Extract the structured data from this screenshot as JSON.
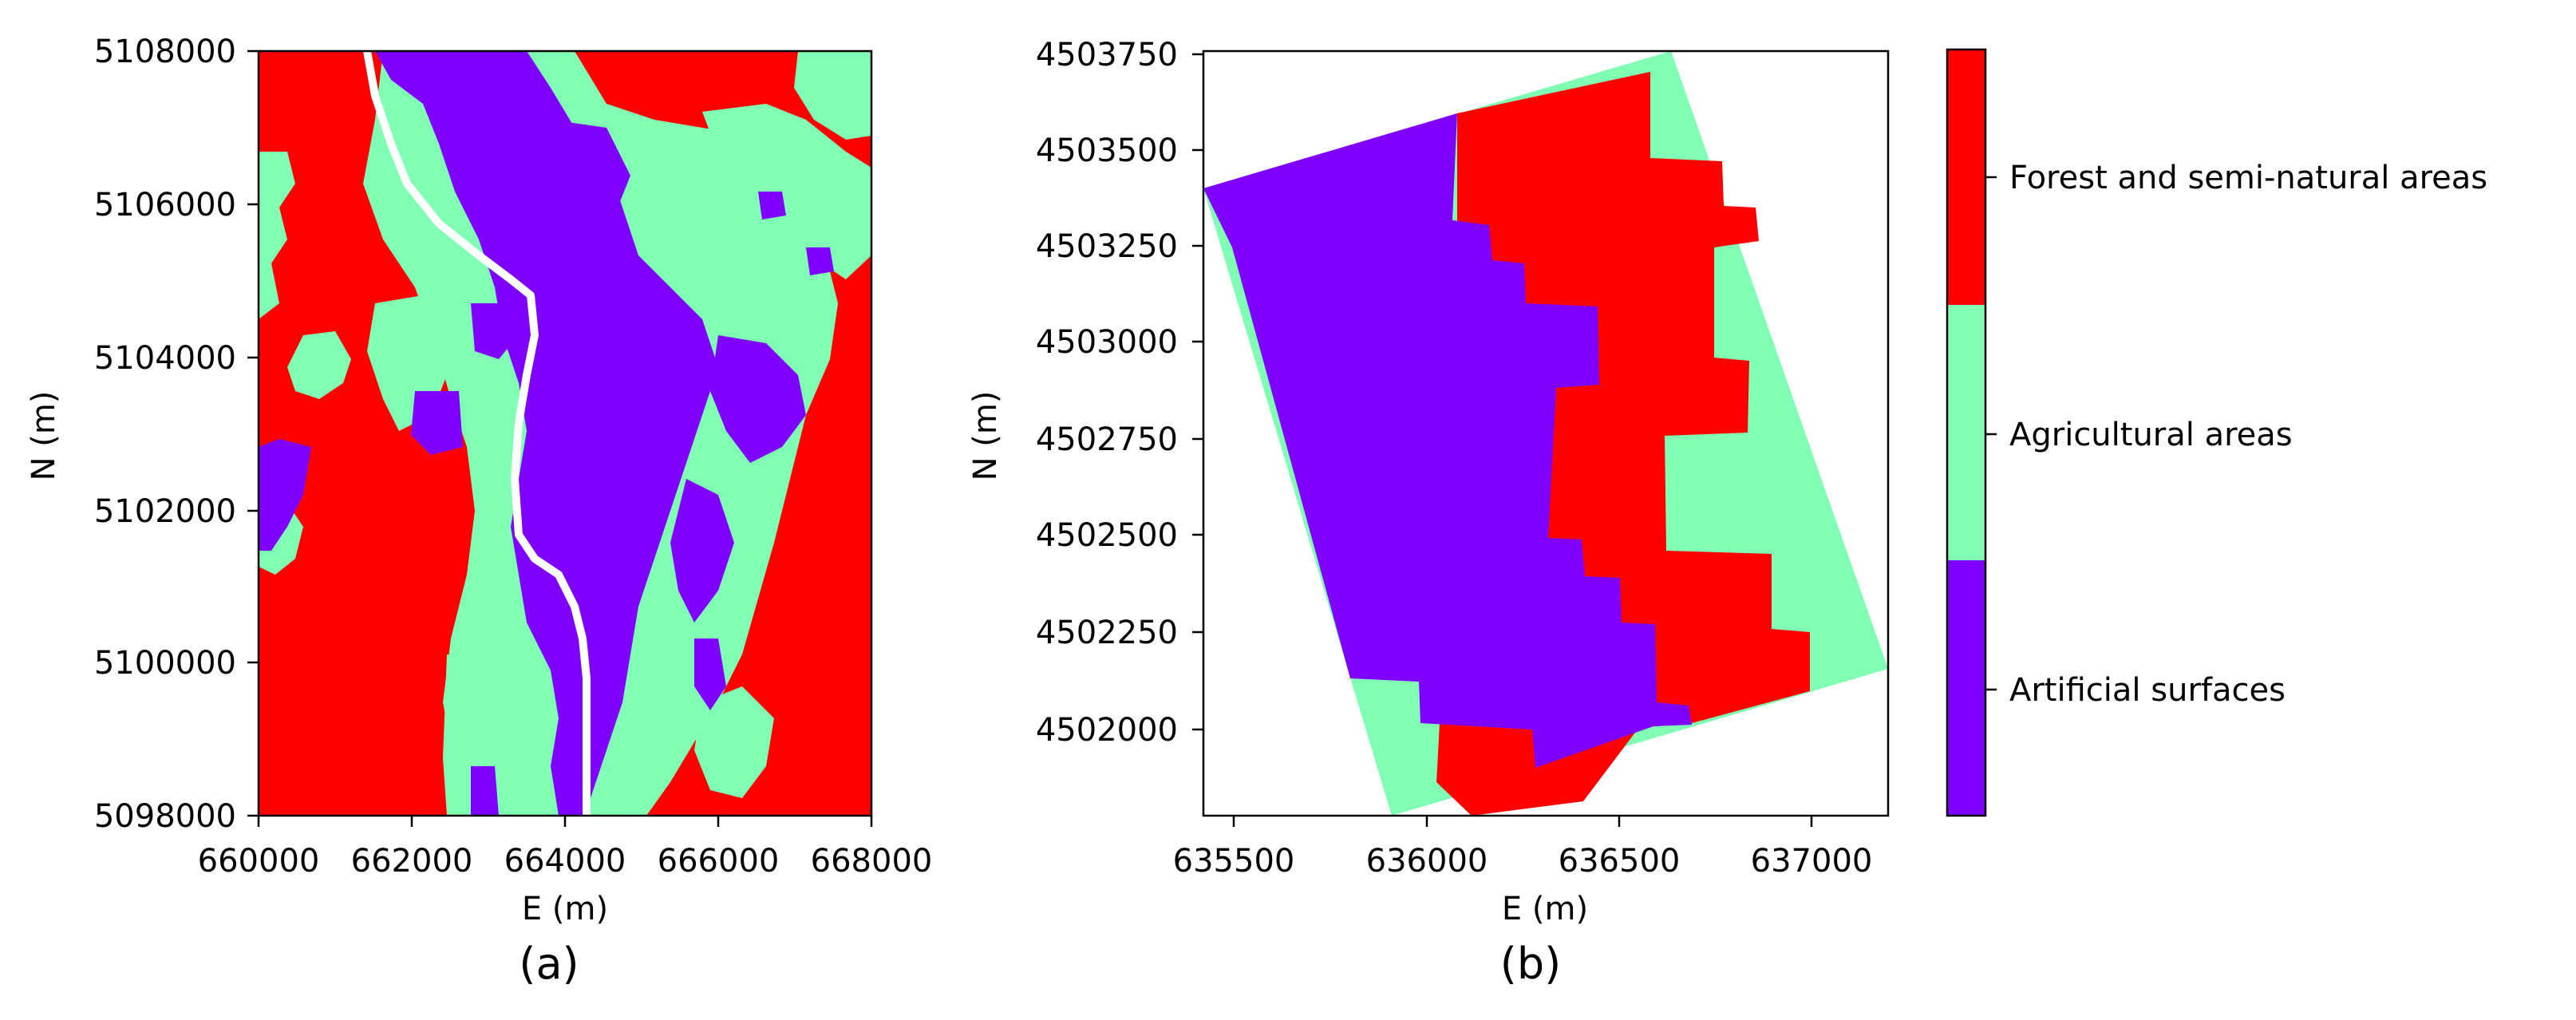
{
  "colors": {
    "artificial": "#7F00FF",
    "agricultural": "#80FFB4",
    "forest": "#FF0000",
    "river": "#FFFFFF"
  },
  "classes": [
    {
      "key": "artificial",
      "label": "Artificial surfaces"
    },
    {
      "key": "agricultural",
      "label": "Agricultural areas"
    },
    {
      "key": "forest",
      "label": "Forest and semi-natural areas"
    }
  ],
  "panel_a": {
    "label": "(a)",
    "xlabel": "E (m)",
    "ylabel": "N (m)",
    "xlim": [
      660000,
      668000
    ],
    "ylim": [
      5098000,
      5108000
    ],
    "xticks": [
      "660000",
      "662000",
      "664000",
      "666000",
      "668000"
    ],
    "yticks": [
      "5098000",
      "5100000",
      "5102000",
      "5104000",
      "5106000",
      "5108000"
    ]
  },
  "panel_b": {
    "label": "(b)",
    "xlabel": "E (m)",
    "ylabel": "N (m)",
    "xlim": [
      635420,
      637200
    ],
    "ylim": [
      4501790,
      4503760
    ],
    "xticks": [
      "635500",
      "636000",
      "636500",
      "637000"
    ],
    "yticks": [
      "4502000",
      "4502250",
      "4502500",
      "4502750",
      "4503000",
      "4503250",
      "4503500",
      "4503750"
    ]
  }
}
